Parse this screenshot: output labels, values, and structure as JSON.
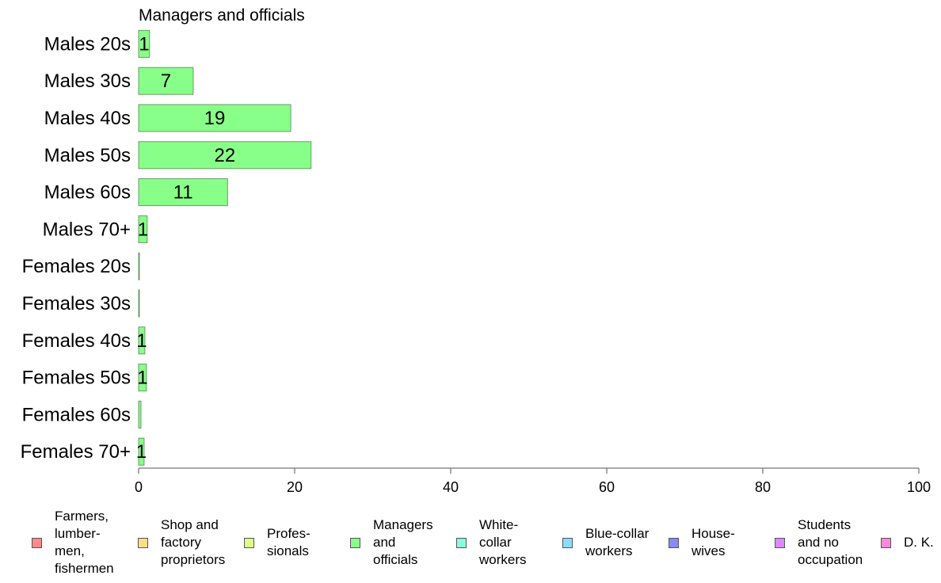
{
  "chart_data": {
    "type": "bar",
    "orientation": "horizontal",
    "title": "Managers and officials",
    "categories": [
      "Males 20s",
      "Males 30s",
      "Males 40s",
      "Males 50s",
      "Males 60s",
      "Males 70+",
      "Females 20s",
      "Females 30s",
      "Females 40s",
      "Females 50s",
      "Females 60s",
      "Females 70+"
    ],
    "values": [
      1.4,
      7,
      19.5,
      22.1,
      11.4,
      1.1,
      0.1,
      0.1,
      0.8,
      1,
      0.3,
      0.7
    ],
    "data_labels": [
      "1",
      "7",
      "19",
      "22",
      "11",
      "1",
      "",
      "",
      "1",
      "1",
      "",
      "1"
    ],
    "xlim": [
      0,
      100
    ],
    "x_ticks": [
      "0",
      "20",
      "40",
      "60",
      "80",
      "100"
    ],
    "grid": false,
    "bar_color": "#88ff88",
    "bar_stroke": "#6a9a6a",
    "legend_position": "bottom",
    "legend": [
      {
        "label": "Farmers,\nlumber-\nmen,\nfishermen",
        "color": "#ff8888"
      },
      {
        "label": "Shop and\nfactory\nproprietors",
        "color": "#ffdd88"
      },
      {
        "label": "Profes-\nsionals",
        "color": "#ddff88"
      },
      {
        "label": "Managers\nand\nofficials",
        "color": "#88ff88"
      },
      {
        "label": "White-\ncollar\nworkers",
        "color": "#88ffdd"
      },
      {
        "label": "Blue-collar\nworkers",
        "color": "#88ddff"
      },
      {
        "label": "House-\nwives",
        "color": "#8888ff"
      },
      {
        "label": "Students\nand no\noccupation",
        "color": "#dd88ff"
      },
      {
        "label": "D. K.",
        "color": "#ff88dd"
      }
    ]
  }
}
